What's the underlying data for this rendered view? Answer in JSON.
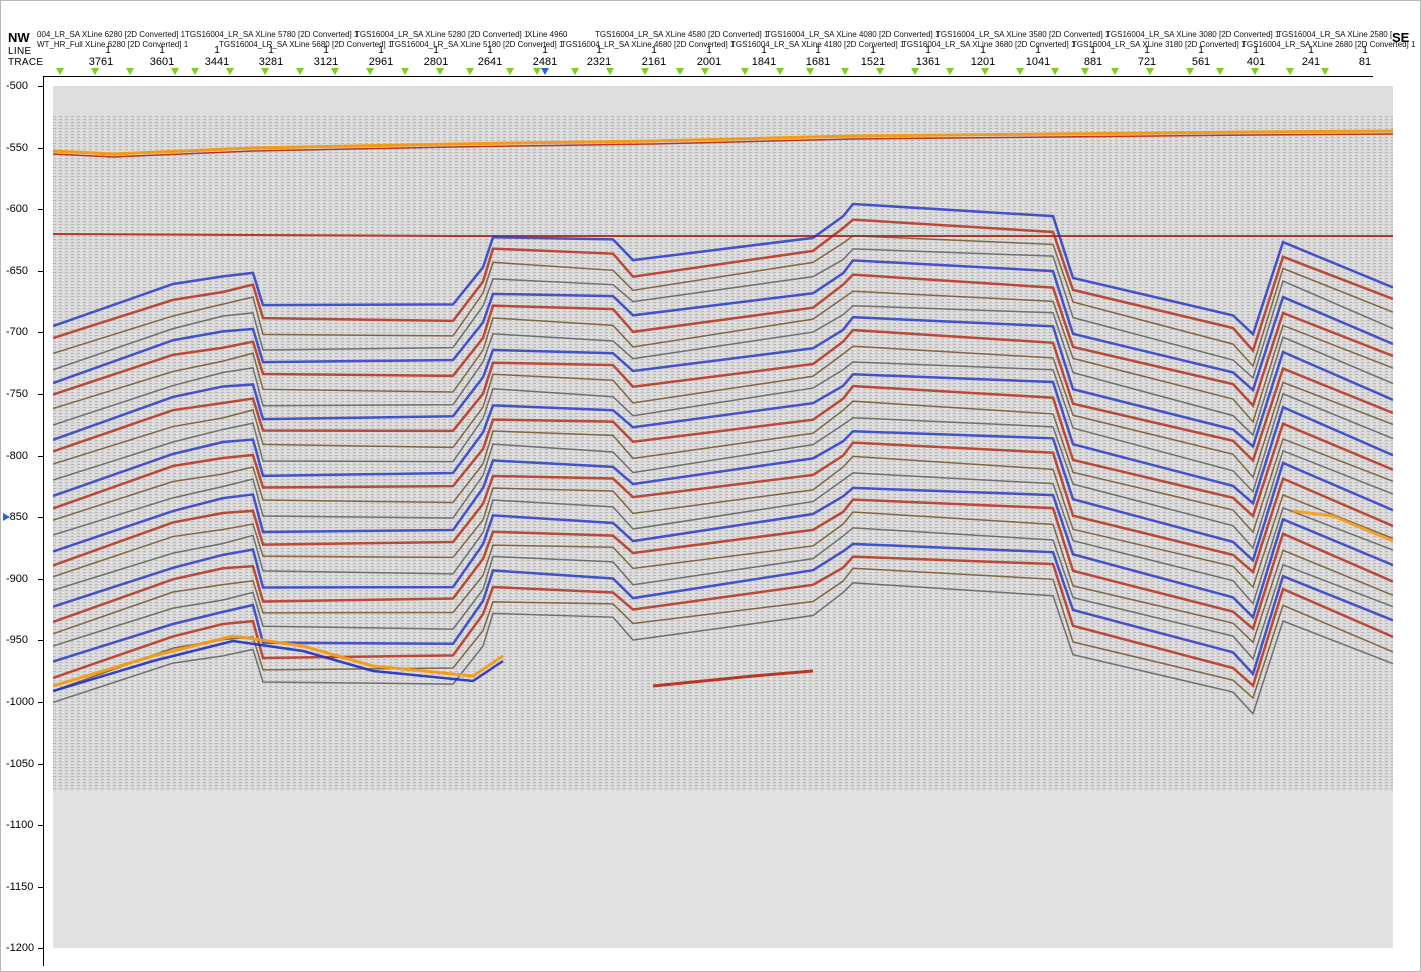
{
  "header": {
    "left_direction": "NW",
    "right_direction": "SE",
    "line_label": "LINE",
    "trace_label": "TRACE",
    "lines_row1": [
      "004_LR_SA XLine 6280 [2D Converted] 1",
      "TGS16004_LR_SA XLine 5780 [2D Converted] 1",
      "TGS16004_LR_SA XLine 5280 [2D Converted] 1",
      "XLine 4960",
      "TGS16004_LR_SA XLine 4580 [2D Converted] 1",
      "TGS16004_LR_SA XLine 4080 [2D Converted] 1",
      "TGS16004_LR_SA XLine 3580 [2D Converted] 1",
      "TGS16004_LR_SA XLine 3080 [2D Converted] 1",
      "TGS16004_LR_SA XLine 2580 ["
    ],
    "lines_row2": [
      "WT_HR_Full XLine 6280 [2D Converted] 1",
      "TGS16004_LR_SA XLine 5680 [2D Converted] 1",
      "TGS16004_LR_SA XLine 5180 [2D Converted] 1",
      "TGS16004_LR_SA XLine 4680 [2D Converted] 1",
      "TGS16004_LR_SA XLine 4180 [2D Converted] 1",
      "TGS16004_LR_SA XLine 3680 [2D Converted] 1",
      "TGS16004_LR_SA XLine 3180 [2D Converted] 1",
      "TGS16004_LR_SA XLine 2680 [2D Converted] 1"
    ],
    "line_ones": [
      "1",
      "1",
      "1",
      "1",
      "1",
      "1",
      "1",
      "1",
      "1",
      "1",
      "1",
      "1",
      "1",
      "1",
      "1",
      "1",
      "1",
      "1",
      "1",
      "1",
      "1",
      "1",
      "1",
      "1",
      "1"
    ],
    "traces": [
      "3761",
      "3601",
      "3441",
      "3281",
      "3121",
      "2961",
      "2801",
      "2641",
      "2481",
      "2321",
      "2161",
      "2001",
      "1841",
      "1681",
      "1521",
      "1361",
      "1201",
      "1041",
      "881",
      "721",
      "561",
      "401",
      "241",
      "81"
    ]
  },
  "y_axis": {
    "labels": [
      "-500",
      "-550",
      "-600",
      "-650",
      "-700",
      "-750",
      "-800",
      "-850",
      "-900",
      "-950",
      "-1000",
      "-1050",
      "-1100",
      "-1150",
      "-1200"
    ]
  },
  "colors": {
    "background": "#ffffff",
    "plot_background": "#dcdcdc",
    "marker_green": "#7ccf1f",
    "marker_blue": "#2b63d9",
    "seismic_red": "#b3260f",
    "seismic_blue": "#1f2fc4",
    "seismic_orange": "#f59a16",
    "seismic_brown": "#6e4a1c"
  },
  "icons": {
    "trace_marker": "green-triangle-icon",
    "selected_trace_marker": "blue-triangle-icon",
    "depth_marker": "blue-arrow-icon"
  }
}
